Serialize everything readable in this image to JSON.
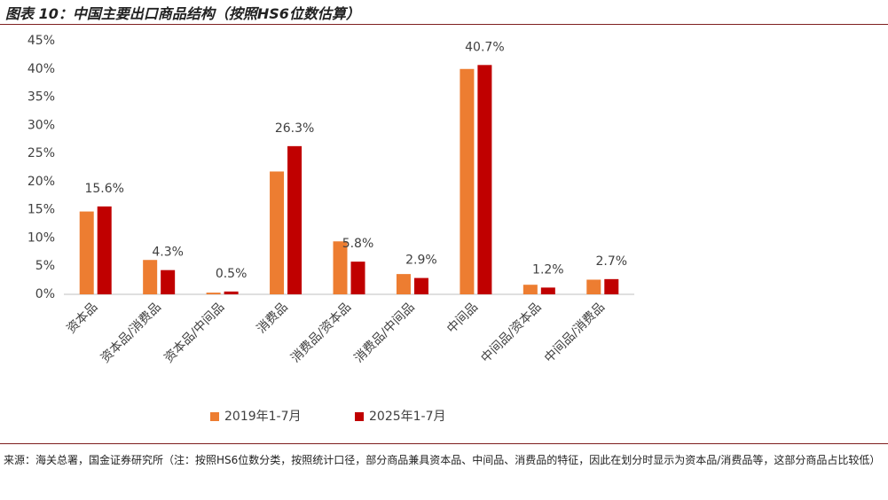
{
  "title": "图表 10：中国主要出口商品结构（按照HS6位数估算）",
  "chart_data": {
    "type": "bar",
    "categories": [
      "资本品",
      "资本品/消费品",
      "资本品/中间品",
      "消费品",
      "消费品/资本品",
      "消费品/中间品",
      "中间品",
      "中间品/资本品",
      "中间品/消费品"
    ],
    "series": [
      {
        "name": "2019年1-7月",
        "color": "#ED7D31",
        "values": [
          14.7,
          6.1,
          0.3,
          21.8,
          9.4,
          3.6,
          40.0,
          1.7,
          2.6
        ]
      },
      {
        "name": "2025年1-7月",
        "color": "#C00000",
        "values": [
          15.6,
          4.3,
          0.5,
          26.3,
          5.8,
          2.9,
          40.7,
          1.2,
          2.7
        ],
        "value_labels": [
          "15.6%",
          "4.3%",
          "0.5%",
          "26.3%",
          "5.8%",
          "2.9%",
          "40.7%",
          "1.2%",
          "2.7%"
        ]
      }
    ],
    "ylim": [
      0,
      45
    ],
    "yticks": [
      {
        "value": 0,
        "label": "0%"
      },
      {
        "value": 5,
        "label": "5%"
      },
      {
        "value": 10,
        "label": "10%"
      },
      {
        "value": 15,
        "label": "15%"
      },
      {
        "value": 20,
        "label": "20%"
      },
      {
        "value": 25,
        "label": "25%"
      },
      {
        "value": 30,
        "label": "30%"
      },
      {
        "value": 35,
        "label": "35%"
      },
      {
        "value": 40,
        "label": "40%"
      },
      {
        "value": 45,
        "label": "45%"
      }
    ],
    "grid": false,
    "legend": "bottom"
  },
  "source": "来源：海关总署，国金证券研究所（注：按照HS6位数分类，按照统计口径，部分商品兼具资本品、中间品、消费品的特征，因此在划分时显示为资本品/消费品等，这部分商品占比较低）"
}
